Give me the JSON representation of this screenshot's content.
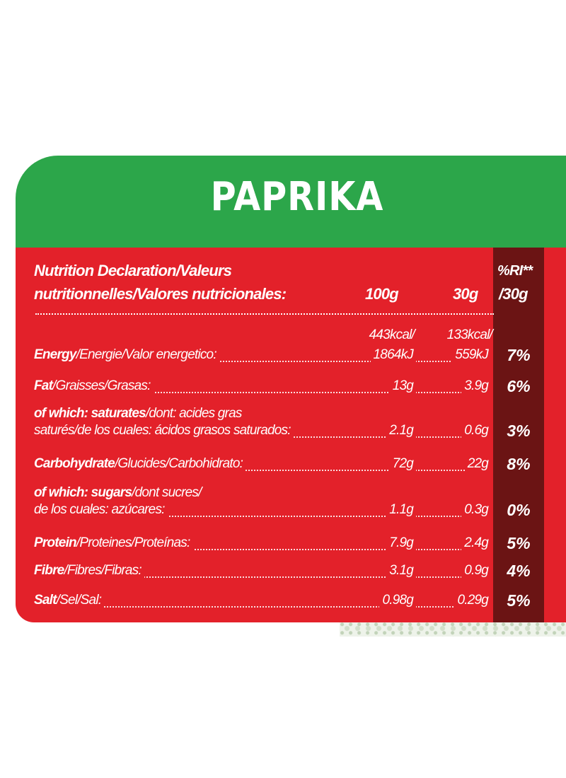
{
  "product_name": "PAPRIKA",
  "header": {
    "line1": "Nutrition Declaration/Valeurs",
    "line2": "nutritionnelles/Valores nutricionales:",
    "col_100g": "100g",
    "col_30g": "30g",
    "ri_line1": "%RI**",
    "ri_line2": "/30g"
  },
  "rows": [
    {
      "bold": "Energy",
      "rest": "/Energie/Valor energetico:",
      "pre1": "443kcal/",
      "pre2": "133kcal/",
      "v100": "1864kJ",
      "v30": "559kJ",
      "ri": "7%"
    },
    {
      "bold": "Fat",
      "rest": "/Graisses/Grasas:",
      "v100": "13g",
      "v30": "3.9g",
      "ri": "6%"
    },
    {
      "bold": "of which: saturates",
      "rest": "/dont: acides gras",
      "line2": "saturés/de los cuales: ácidos grasos saturados:",
      "v100": "2.1g",
      "v30": "0.6g",
      "ri": "3%"
    },
    {
      "bold": "Carbohydrate",
      "rest": "/Glucides/Carbohidrato:",
      "v100": "72g",
      "v30": "22g",
      "ri": "8%"
    },
    {
      "bold": "of which: sugars",
      "rest": "/dont sucres/",
      "line2": "de los cuales: azúcares:",
      "v100": "1.1g",
      "v30": "0.3g",
      "ri": "0%"
    },
    {
      "bold": "Protein",
      "rest": "/Proteines/Proteínas:",
      "v100": "7.9g",
      "v30": "2.4g",
      "ri": "5%"
    },
    {
      "bold": "Fibre",
      "rest": "/Fibres/Fibras:",
      "v100": "3.1g",
      "v30": "0.9g",
      "ri": "4%"
    },
    {
      "bold": "Salt",
      "rest": "/Sel/Sal:",
      "v100": "0.98g",
      "v30": "0.29g",
      "ri": "5%"
    }
  ],
  "colors": {
    "header_green": "#2ca64a",
    "panel_red": "#e3212a",
    "ri_column": "#6b1414",
    "text": "#ffffff"
  }
}
